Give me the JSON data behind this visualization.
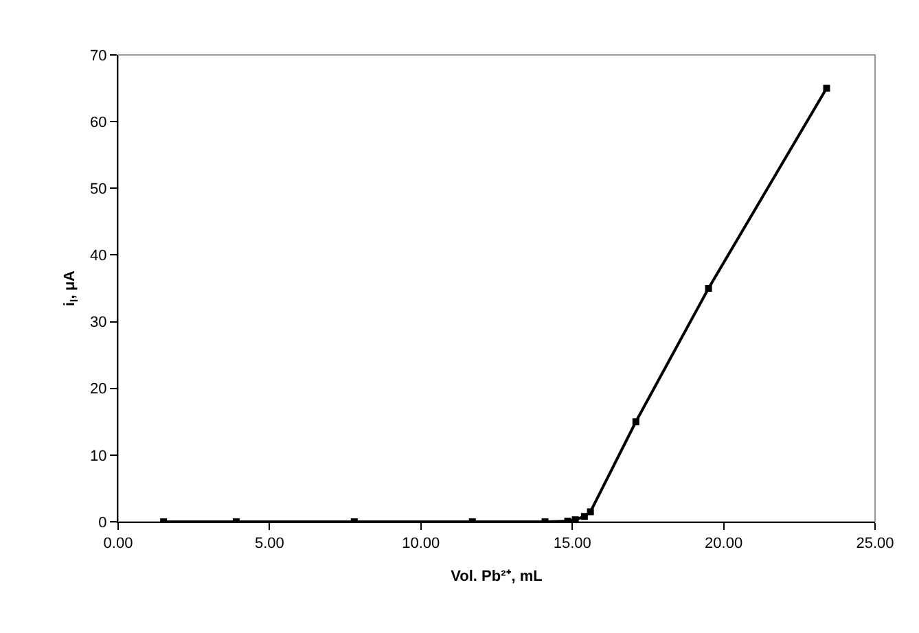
{
  "chart_data": {
    "type": "line",
    "xlabel": "Vol. Pb²⁺, mL",
    "ylabel": "i$_{l}$, μA",
    "x": [
      1.5,
      3.9,
      7.8,
      11.7,
      14.1,
      14.85,
      15.1,
      15.4,
      15.6,
      17.1,
      19.5,
      23.4
    ],
    "series": [
      {
        "color": "#000000",
        "values": [
          0,
          0,
          0,
          0,
          0,
          0.1,
          0.3,
          0.8,
          1.5,
          15,
          35,
          65
        ]
      }
    ],
    "xlim": [
      0,
      25
    ],
    "xticks": [
      {
        "value": 0,
        "label": "0.00"
      },
      {
        "value": 5,
        "label": "5.00"
      },
      {
        "value": 10,
        "label": "10.00"
      },
      {
        "value": 15,
        "label": "15.00"
      },
      {
        "value": 20,
        "label": "20.00"
      },
      {
        "value": 25,
        "label": "25.00"
      }
    ],
    "ylim": [
      0,
      70
    ],
    "yticks": [
      0,
      10,
      20,
      30,
      40,
      50,
      60,
      70
    ],
    "grid": false,
    "marker": "square",
    "line_style": "solid"
  }
}
